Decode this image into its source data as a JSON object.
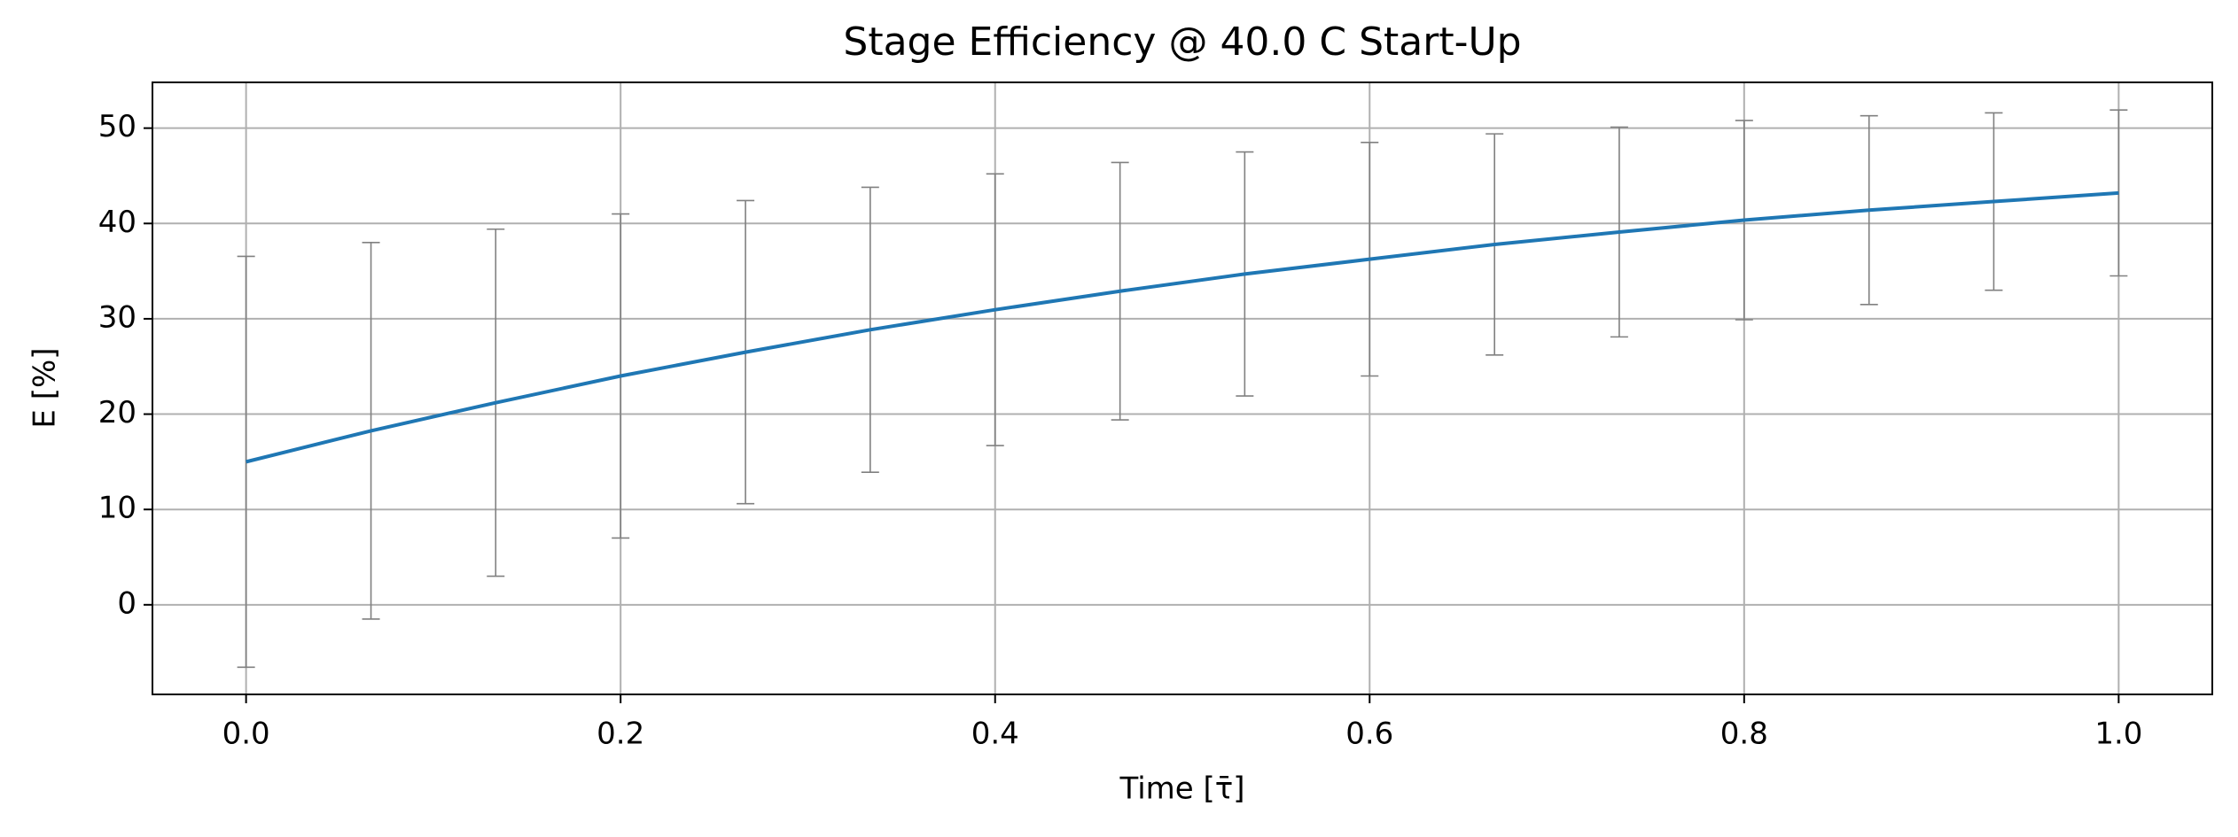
{
  "chart_data": {
    "type": "line",
    "title": "Stage Efficiency @ 40.0 C Start-Up",
    "xlabel": "Time [τ̄]",
    "ylabel": "E [%]",
    "x": [
      0,
      0.0667,
      0.1333,
      0.2,
      0.2667,
      0.3333,
      0.4,
      0.4667,
      0.5333,
      0.6,
      0.6667,
      0.7333,
      0.8,
      0.8667,
      0.9333,
      1
    ],
    "series": [
      {
        "color": "#1f77b4",
        "error_color": "#808080",
        "values": [
          15,
          18.25,
          21.2,
          24,
          26.5,
          28.85,
          30.95,
          32.9,
          34.7,
          36.25,
          37.8,
          39.1,
          40.35,
          41.4,
          42.3,
          43.2
        ],
        "errors": [
          21.55,
          19.75,
          18.2,
          17,
          15.9,
          14.95,
          14.25,
          13.5,
          12.8,
          12.25,
          11.6,
          11,
          10.45,
          9.9,
          9.3,
          8.7
        ]
      }
    ],
    "xlim": [
      -0.05,
      1.05
    ],
    "ylim": [
      -9.4,
      54.8
    ],
    "xticks": [
      {
        "value": 0,
        "label": "0.0"
      },
      0.2,
      0.4,
      0.6,
      0.8,
      {
        "value": 1,
        "label": "1.0"
      }
    ],
    "yticks": [
      0,
      10,
      20,
      30,
      40,
      50
    ],
    "grid": true
  }
}
